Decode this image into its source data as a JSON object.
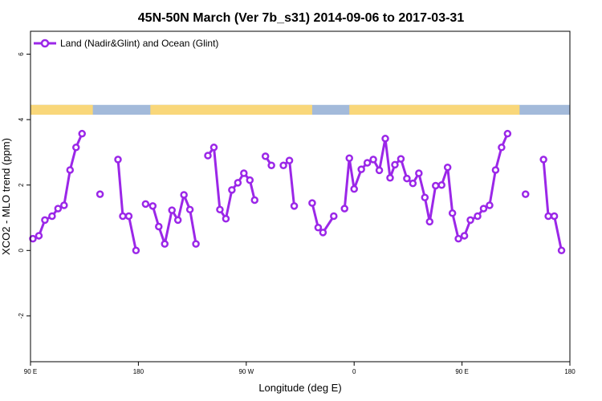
{
  "chart_data": {
    "type": "line",
    "title": "45N-50N March (Ver 7b_s31)   2014-09-06 to 2017-03-31",
    "xlabel": "Longitude (deg E)",
    "ylabel": "XCO2 - MLO trend (ppm)",
    "xlim": [
      90,
      540
    ],
    "ylim": [
      -3.4,
      6.7
    ],
    "x_ticks": [
      {
        "value": 90,
        "label": "90 E"
      },
      {
        "value": 180,
        "label": "180"
      },
      {
        "value": 270,
        "label": "90 W"
      },
      {
        "value": 360,
        "label": "0"
      },
      {
        "value": 450,
        "label": "90 E"
      },
      {
        "value": 540,
        "label": "180"
      }
    ],
    "y_ticks": [
      {
        "value": -2,
        "label": "-2"
      },
      {
        "value": 0,
        "label": "0"
      },
      {
        "value": 2,
        "label": "2"
      },
      {
        "value": 4,
        "label": "4"
      },
      {
        "value": 6,
        "label": "6"
      }
    ],
    "legend": {
      "position": "top-left"
    },
    "series": [
      {
        "name": "Land (Nadir&Glint) and Ocean (Glint)",
        "color": "#9b27e8",
        "segments": [
          [
            [
              92,
              0.36
            ],
            [
              97,
              0.45
            ],
            [
              102,
              0.93
            ],
            [
              108,
              1.05
            ],
            [
              113,
              1.28
            ],
            [
              118,
              1.38
            ],
            [
              123,
              2.46
            ],
            [
              128,
              3.15
            ],
            [
              133,
              3.57
            ]
          ],
          [
            [
              148,
              1.72
            ]
          ],
          [
            [
              163,
              2.78
            ],
            [
              167,
              1.05
            ],
            [
              172,
              1.05
            ],
            [
              178,
              0.0
            ]
          ],
          [
            [
              186,
              1.42
            ],
            [
              192,
              1.36
            ],
            [
              197,
              0.73
            ],
            [
              202,
              0.2
            ],
            [
              208,
              1.23
            ],
            [
              213,
              0.93
            ],
            [
              218,
              1.7
            ],
            [
              223,
              1.25
            ],
            [
              228,
              0.2
            ]
          ],
          [
            [
              238,
              2.9
            ],
            [
              243,
              3.15
            ],
            [
              248,
              1.25
            ],
            [
              253,
              0.97
            ],
            [
              258,
              1.85
            ],
            [
              263,
              2.07
            ],
            [
              268,
              2.36
            ],
            [
              273,
              2.15
            ],
            [
              277,
              1.54
            ]
          ],
          [
            [
              286,
              2.88
            ],
            [
              291,
              2.6
            ]
          ],
          [
            [
              301,
              2.6
            ],
            [
              306,
              2.75
            ],
            [
              310,
              1.36
            ]
          ],
          [
            [
              325,
              1.45
            ],
            [
              330,
              0.7
            ],
            [
              334,
              0.55
            ],
            [
              343,
              1.05
            ]
          ],
          [
            [
              352,
              1.28
            ],
            [
              356,
              2.82
            ],
            [
              360,
              1.88
            ],
            [
              366,
              2.48
            ],
            [
              371,
              2.68
            ],
            [
              376,
              2.78
            ],
            [
              381,
              2.45
            ],
            [
              386,
              3.42
            ],
            [
              390,
              2.22
            ],
            [
              394,
              2.62
            ],
            [
              399,
              2.8
            ],
            [
              404,
              2.2
            ],
            [
              409,
              2.05
            ],
            [
              414,
              2.36
            ],
            [
              419,
              1.62
            ],
            [
              423,
              0.88
            ],
            [
              428,
              1.98
            ],
            [
              433,
              2.0
            ],
            [
              438,
              2.54
            ],
            [
              442,
              1.14
            ],
            [
              447,
              0.36
            ],
            [
              452,
              0.45
            ],
            [
              457,
              0.93
            ],
            [
              463,
              1.05
            ],
            [
              468,
              1.28
            ],
            [
              473,
              1.38
            ],
            [
              478,
              2.46
            ],
            [
              483,
              3.15
            ],
            [
              488,
              3.57
            ]
          ]
        ],
        "isolated": [
          [
            503,
            1.72
          ]
        ]
      }
    ],
    "extra_segments": [
      [
        [
          518,
          2.78
        ],
        [
          522,
          1.05
        ],
        [
          527,
          1.05
        ],
        [
          533,
          0.0
        ]
      ]
    ],
    "land_ocean_band": {
      "y_range": [
        4.15,
        4.45
      ],
      "ocean_color": "#a3bada",
      "land_color": "#f9d77a",
      "land_ranges": [
        [
          90,
          142
        ],
        [
          190,
          325
        ],
        [
          356,
          498
        ]
      ]
    }
  }
}
